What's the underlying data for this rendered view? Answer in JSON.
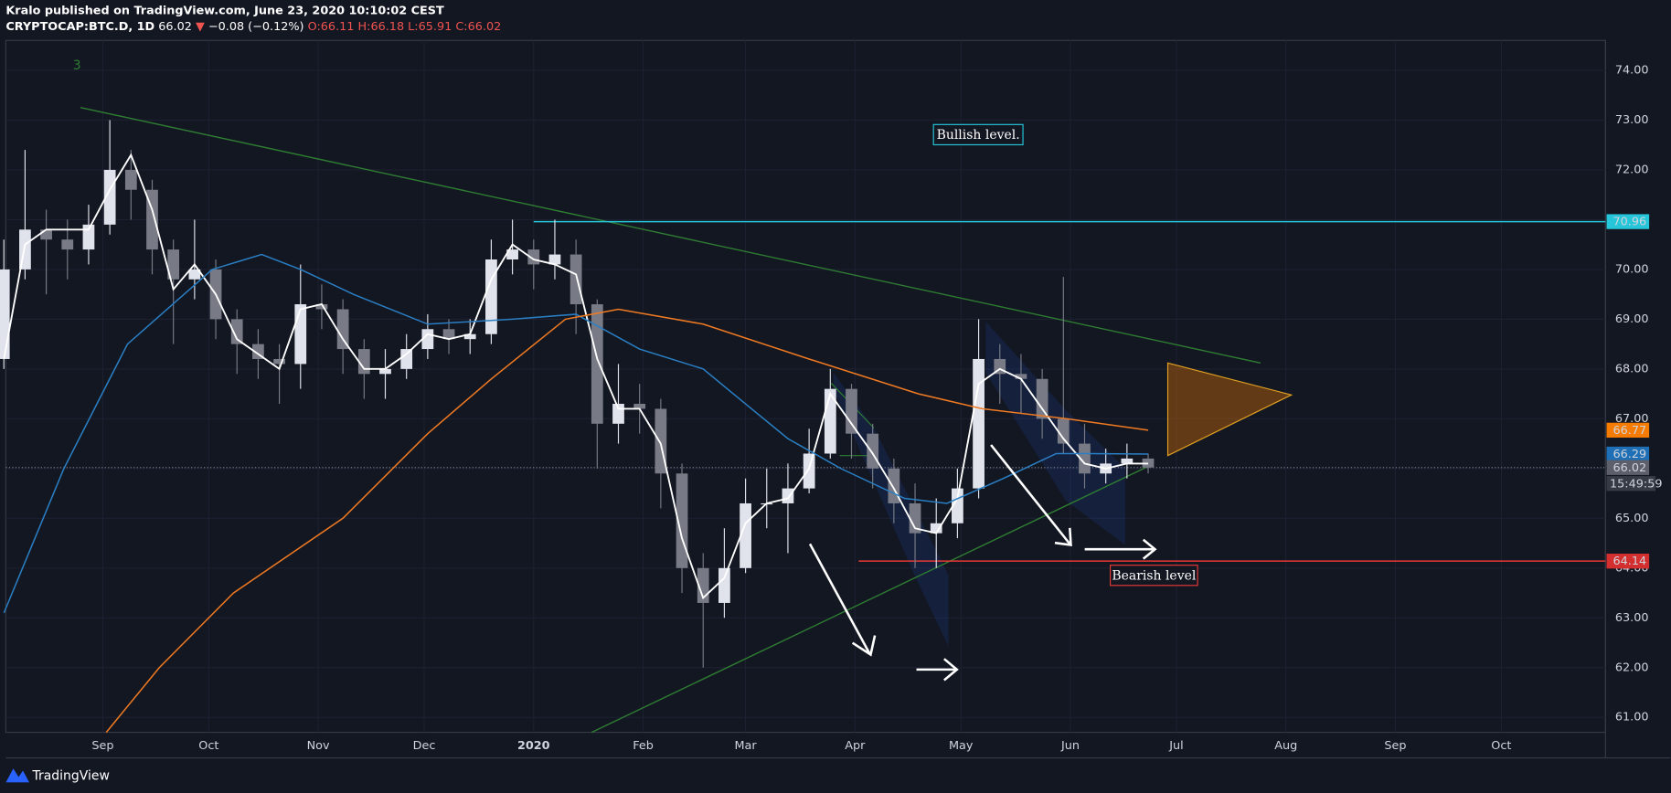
{
  "header": {
    "author_line": "Kralo published on TradingView.com, June 23, 2020 10:10:02 CEST",
    "symbol": "CRYPTOCAP:BTC.D, 1D",
    "last": "66.02",
    "change": "−0.08 (−0.12%)",
    "ohlc": [
      {
        "label": "O:",
        "value": "66.11"
      },
      {
        "label": "H:",
        "value": "66.18"
      },
      {
        "label": "L:",
        "value": "65.91"
      },
      {
        "label": "C:",
        "value": "66.02"
      }
    ]
  },
  "footer": {
    "brand": "TradingView"
  },
  "chart_data": {
    "type": "candlestick",
    "xlim": [
      2.05,
      456.5
    ],
    "ylim": [
      60.7,
      74.6
    ],
    "xticks": [
      {
        "value": 31,
        "label": "Sep"
      },
      {
        "value": 61,
        "label": "Oct"
      },
      {
        "value": 92,
        "label": "Nov"
      },
      {
        "value": 122,
        "label": "Dec"
      },
      {
        "value": 153,
        "label": "2020"
      },
      {
        "value": 184,
        "label": "Feb"
      },
      {
        "value": 213,
        "label": "Mar"
      },
      {
        "value": 244,
        "label": "Apr"
      },
      {
        "value": 274,
        "label": "May"
      },
      {
        "value": 305,
        "label": "Jun"
      },
      {
        "value": 335,
        "label": "Jul"
      },
      {
        "value": 366,
        "label": "Aug"
      },
      {
        "value": 397,
        "label": "Sep"
      },
      {
        "value": 427,
        "label": "Oct"
      }
    ],
    "yticks": [
      {
        "value": 61,
        "label": "61.00"
      },
      {
        "value": 62,
        "label": "62.00"
      },
      {
        "value": 63,
        "label": "63.00"
      },
      {
        "value": 64,
        "label": "64.00"
      },
      {
        "value": 65,
        "label": "65.00"
      },
      {
        "value": 66,
        "label": "66.00"
      },
      {
        "value": 67,
        "label": "67.00"
      },
      {
        "value": 68,
        "label": "68.00"
      },
      {
        "value": 69,
        "label": "69.00"
      },
      {
        "value": 70,
        "label": "70.00"
      },
      {
        "value": 71,
        "label": "71.00"
      },
      {
        "value": 72,
        "label": "72.00"
      },
      {
        "value": 73,
        "label": "73.00"
      },
      {
        "value": 74,
        "label": "74.00"
      }
    ],
    "up_color": "#e0e3eb",
    "down_color": "#787b86",
    "candles": {
      "x": [
        3,
        9,
        15,
        21,
        27,
        33,
        39,
        45,
        51,
        57,
        63,
        69,
        75,
        81,
        87,
        93,
        99,
        105,
        111,
        117,
        123,
        129,
        135,
        141,
        147,
        153,
        159,
        165,
        171,
        177,
        183,
        189,
        195,
        201,
        207,
        213,
        219,
        225,
        231,
        237,
        243,
        249,
        255,
        261,
        267,
        273,
        279,
        285,
        291,
        297,
        303,
        309,
        315,
        321,
        327
      ],
      "open": [
        68.2,
        70.0,
        70.8,
        70.6,
        70.4,
        70.9,
        72.0,
        71.6,
        70.4,
        69.8,
        70.0,
        69.0,
        68.5,
        68.2,
        68.1,
        69.3,
        69.2,
        68.4,
        67.9,
        68.0,
        68.4,
        68.8,
        68.6,
        68.7,
        70.2,
        70.4,
        70.1,
        70.3,
        69.3,
        66.9,
        67.3,
        67.2,
        65.9,
        64.0,
        63.3,
        64.0,
        65.3,
        65.3,
        65.6,
        66.3,
        67.6,
        66.7,
        66.0,
        65.3,
        64.7,
        64.9,
        65.6,
        68.2,
        67.9,
        67.8,
        67.0,
        66.5,
        65.9,
        66.1,
        66.2
      ],
      "high": [
        70.6,
        72.4,
        71.2,
        71.0,
        71.3,
        73.0,
        72.4,
        71.8,
        70.6,
        71.0,
        70.2,
        69.2,
        68.8,
        68.5,
        70.1,
        69.7,
        69.4,
        68.6,
        68.4,
        68.7,
        69.1,
        69.0,
        69.0,
        70.6,
        71.0,
        70.6,
        71.0,
        70.6,
        69.4,
        68.1,
        67.7,
        67.4,
        66.1,
        64.3,
        64.8,
        65.8,
        66.0,
        66.1,
        66.8,
        68.0,
        67.7,
        66.9,
        66.2,
        65.7,
        65.4,
        66.0,
        69.0,
        68.5,
        68.3,
        68.0,
        69.85,
        66.9,
        66.4,
        66.5,
        66.3
      ],
      "low": [
        68.0,
        69.8,
        69.5,
        69.8,
        70.1,
        70.7,
        71.0,
        69.9,
        68.5,
        69.4,
        68.6,
        67.9,
        67.8,
        67.3,
        67.6,
        68.8,
        67.9,
        67.4,
        67.4,
        67.8,
        68.2,
        68.3,
        68.3,
        68.5,
        69.9,
        69.6,
        69.8,
        68.7,
        66.0,
        66.5,
        66.7,
        65.2,
        63.5,
        62.0,
        63.0,
        63.9,
        64.8,
        64.3,
        65.5,
        66.2,
        66.2,
        65.6,
        64.9,
        64.0,
        64.0,
        64.6,
        65.4,
        67.3,
        67.1,
        66.6,
        66.3,
        65.6,
        65.7,
        65.8,
        65.9
      ],
      "close": [
        70.0,
        70.8,
        70.6,
        70.4,
        70.9,
        72.0,
        71.6,
        70.4,
        69.8,
        70.0,
        69.0,
        68.5,
        68.2,
        68.1,
        69.3,
        69.2,
        68.4,
        67.9,
        68.0,
        68.4,
        68.8,
        68.6,
        68.7,
        70.2,
        70.4,
        70.1,
        70.3,
        69.3,
        66.9,
        67.3,
        67.2,
        65.9,
        64.0,
        63.3,
        64.0,
        65.3,
        65.3,
        65.6,
        66.3,
        67.6,
        66.7,
        66.0,
        65.3,
        64.7,
        64.9,
        65.6,
        68.2,
        67.9,
        67.8,
        67.0,
        66.5,
        65.9,
        66.1,
        66.2,
        66.02
      ]
    },
    "series": [
      {
        "color": "#ffffff",
        "x": [
          3,
          9,
          15,
          27,
          33,
          39,
          45,
          51,
          57,
          63,
          69,
          75,
          81,
          87,
          93,
          99,
          105,
          111,
          117,
          123,
          129,
          135,
          141,
          147,
          153,
          159,
          165,
          171,
          177,
          183,
          189,
          195,
          201,
          207,
          213,
          219,
          225,
          231,
          237,
          243,
          249,
          255,
          261,
          267,
          273,
          279,
          285,
          291,
          297,
          303,
          309,
          315,
          321,
          327
        ],
        "values": [
          68.2,
          70.5,
          70.8,
          70.8,
          71.6,
          72.3,
          71.2,
          69.6,
          70.1,
          69.5,
          68.6,
          68.3,
          68.0,
          69.2,
          69.3,
          68.6,
          68.0,
          68.0,
          68.3,
          68.7,
          68.6,
          68.7,
          69.8,
          70.5,
          70.2,
          70.1,
          69.9,
          68.2,
          67.2,
          67.2,
          66.5,
          64.6,
          63.4,
          63.8,
          64.9,
          65.3,
          65.4,
          66.0,
          67.5,
          66.9,
          66.3,
          65.6,
          64.8,
          64.7,
          65.4,
          67.7,
          68.0,
          67.8,
          67.2,
          66.6,
          66.1,
          66.0,
          66.1,
          66.1
        ]
      },
      {
        "color": "#2a7fc4",
        "x": [
          3,
          20,
          38,
          62,
          76,
          87,
          102,
          123,
          147,
          165,
          183,
          201,
          213,
          225,
          240,
          258,
          270,
          286,
          301,
          310,
          327
        ],
        "values": [
          63.1,
          66.0,
          68.5,
          70.0,
          70.3,
          70.0,
          69.5,
          68.9,
          69.0,
          69.1,
          68.4,
          68.0,
          67.3,
          66.6,
          66.0,
          65.4,
          65.3,
          65.8,
          66.3,
          66.3,
          66.29
        ]
      },
      {
        "color": "#f07a22",
        "x": [
          32,
          47,
          68,
          99,
          123,
          141,
          162,
          177,
          201,
          231,
          262,
          280,
          304,
          327
        ],
        "values": [
          60.7,
          62.0,
          63.5,
          65.0,
          66.7,
          67.8,
          69.0,
          69.2,
          68.9,
          68.2,
          67.5,
          67.2,
          67.0,
          66.77
        ]
      }
    ],
    "levels": [
      {
        "value": 70.96,
        "color": "#26c6da",
        "from": 153
      },
      {
        "value": 64.14,
        "color": "#e53935",
        "from": 245
      }
    ],
    "price_labels": [
      {
        "value": 70.96,
        "color": "#26c6da",
        "text_color": "#131722"
      },
      {
        "value": 66.77,
        "color": "#f57c00",
        "text_color": "#ffffff"
      },
      {
        "value": 66.29,
        "color": "#1e6fb5",
        "text_color": "#ffffff"
      },
      {
        "value": 66.02,
        "color": "#5d606b",
        "text_color": "#ffffff"
      },
      {
        "value": 64.14,
        "color": "#d32f2f",
        "text_color": "#ffffff"
      }
    ],
    "countdown": "15:49:59",
    "last_price": 66.02,
    "annotations": {
      "bullish": "Bullish level.",
      "bearish": "Bearish level",
      "wave": "3"
    }
  }
}
